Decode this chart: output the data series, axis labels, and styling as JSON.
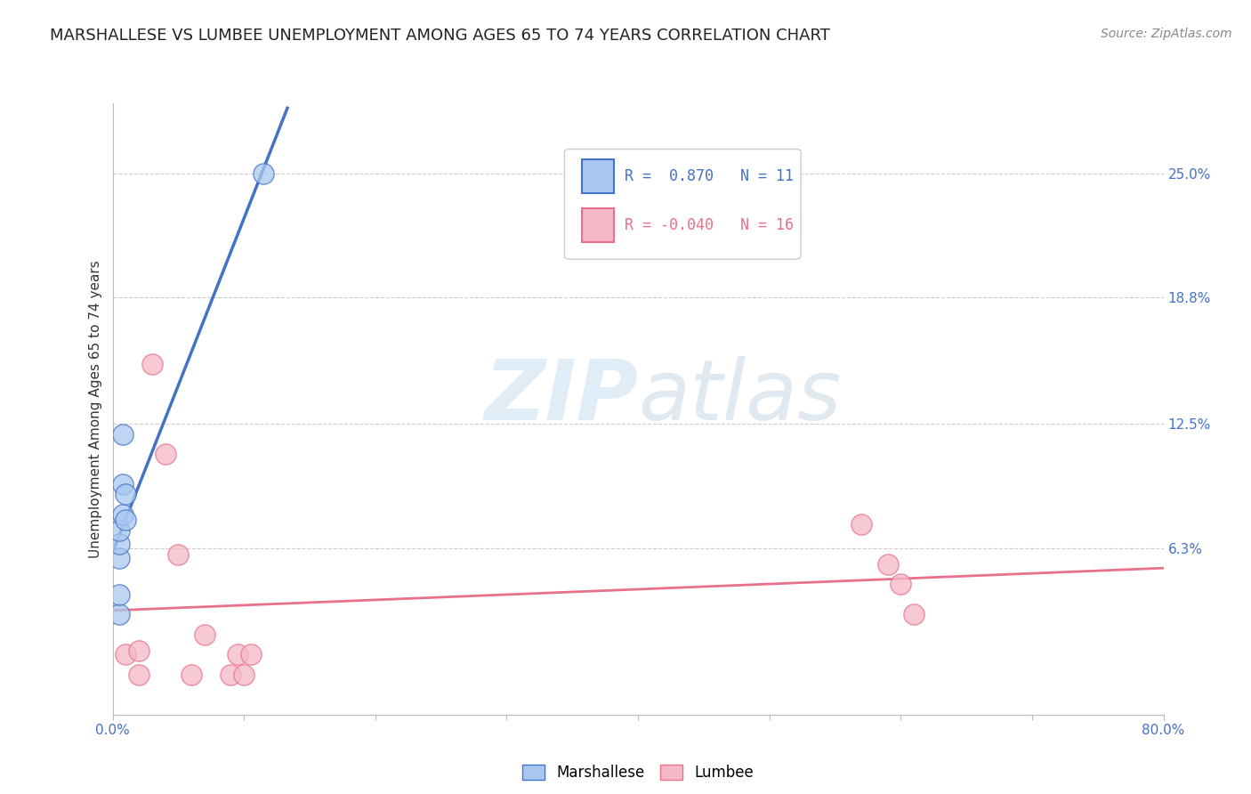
{
  "title": "MARSHALLESE VS LUMBEE UNEMPLOYMENT AMONG AGES 65 TO 74 YEARS CORRELATION CHART",
  "source": "Source: ZipAtlas.com",
  "ylabel": "Unemployment Among Ages 65 to 74 years",
  "xlim": [
    0.0,
    0.8
  ],
  "ylim": [
    -0.02,
    0.285
  ],
  "xticks": [
    0.0,
    0.1,
    0.2,
    0.3,
    0.4,
    0.5,
    0.6,
    0.7,
    0.8
  ],
  "xticklabels": [
    "0.0%",
    "",
    "",
    "",
    "",
    "",
    "",
    "",
    "80.0%"
  ],
  "ytick_positions": [
    0.063,
    0.125,
    0.188,
    0.25
  ],
  "yticklabels": [
    "6.3%",
    "12.5%",
    "18.8%",
    "25.0%"
  ],
  "marshallese_x": [
    0.005,
    0.005,
    0.005,
    0.005,
    0.005,
    0.008,
    0.008,
    0.008,
    0.01,
    0.01,
    0.115
  ],
  "marshallese_y": [
    0.03,
    0.04,
    0.058,
    0.065,
    0.072,
    0.08,
    0.095,
    0.12,
    0.077,
    0.09,
    0.25
  ],
  "lumbee_x": [
    0.01,
    0.02,
    0.02,
    0.03,
    0.04,
    0.05,
    0.06,
    0.07,
    0.09,
    0.095,
    0.1,
    0.105,
    0.57,
    0.59,
    0.6,
    0.61
  ],
  "lumbee_y": [
    0.01,
    0.0,
    0.012,
    0.155,
    0.11,
    0.06,
    0.0,
    0.02,
    0.0,
    0.01,
    0.0,
    0.01,
    0.075,
    0.055,
    0.045,
    0.03
  ],
  "marshallese_color": "#a8c8f0",
  "lumbee_color": "#f5b8c8",
  "marshallese_line_color": "#4472c4",
  "lumbee_line_color": "#e8708a",
  "marshallese_R": 0.87,
  "marshallese_N": 11,
  "lumbee_R": -0.04,
  "lumbee_N": 16,
  "watermark_zip": "ZIP",
  "watermark_atlas": "atlas",
  "grid_color": "#cccccc",
  "background_color": "#ffffff",
  "title_fontsize": 13,
  "axis_label_fontsize": 11,
  "tick_fontsize": 11,
  "legend_fontsize": 12,
  "source_fontsize": 10
}
